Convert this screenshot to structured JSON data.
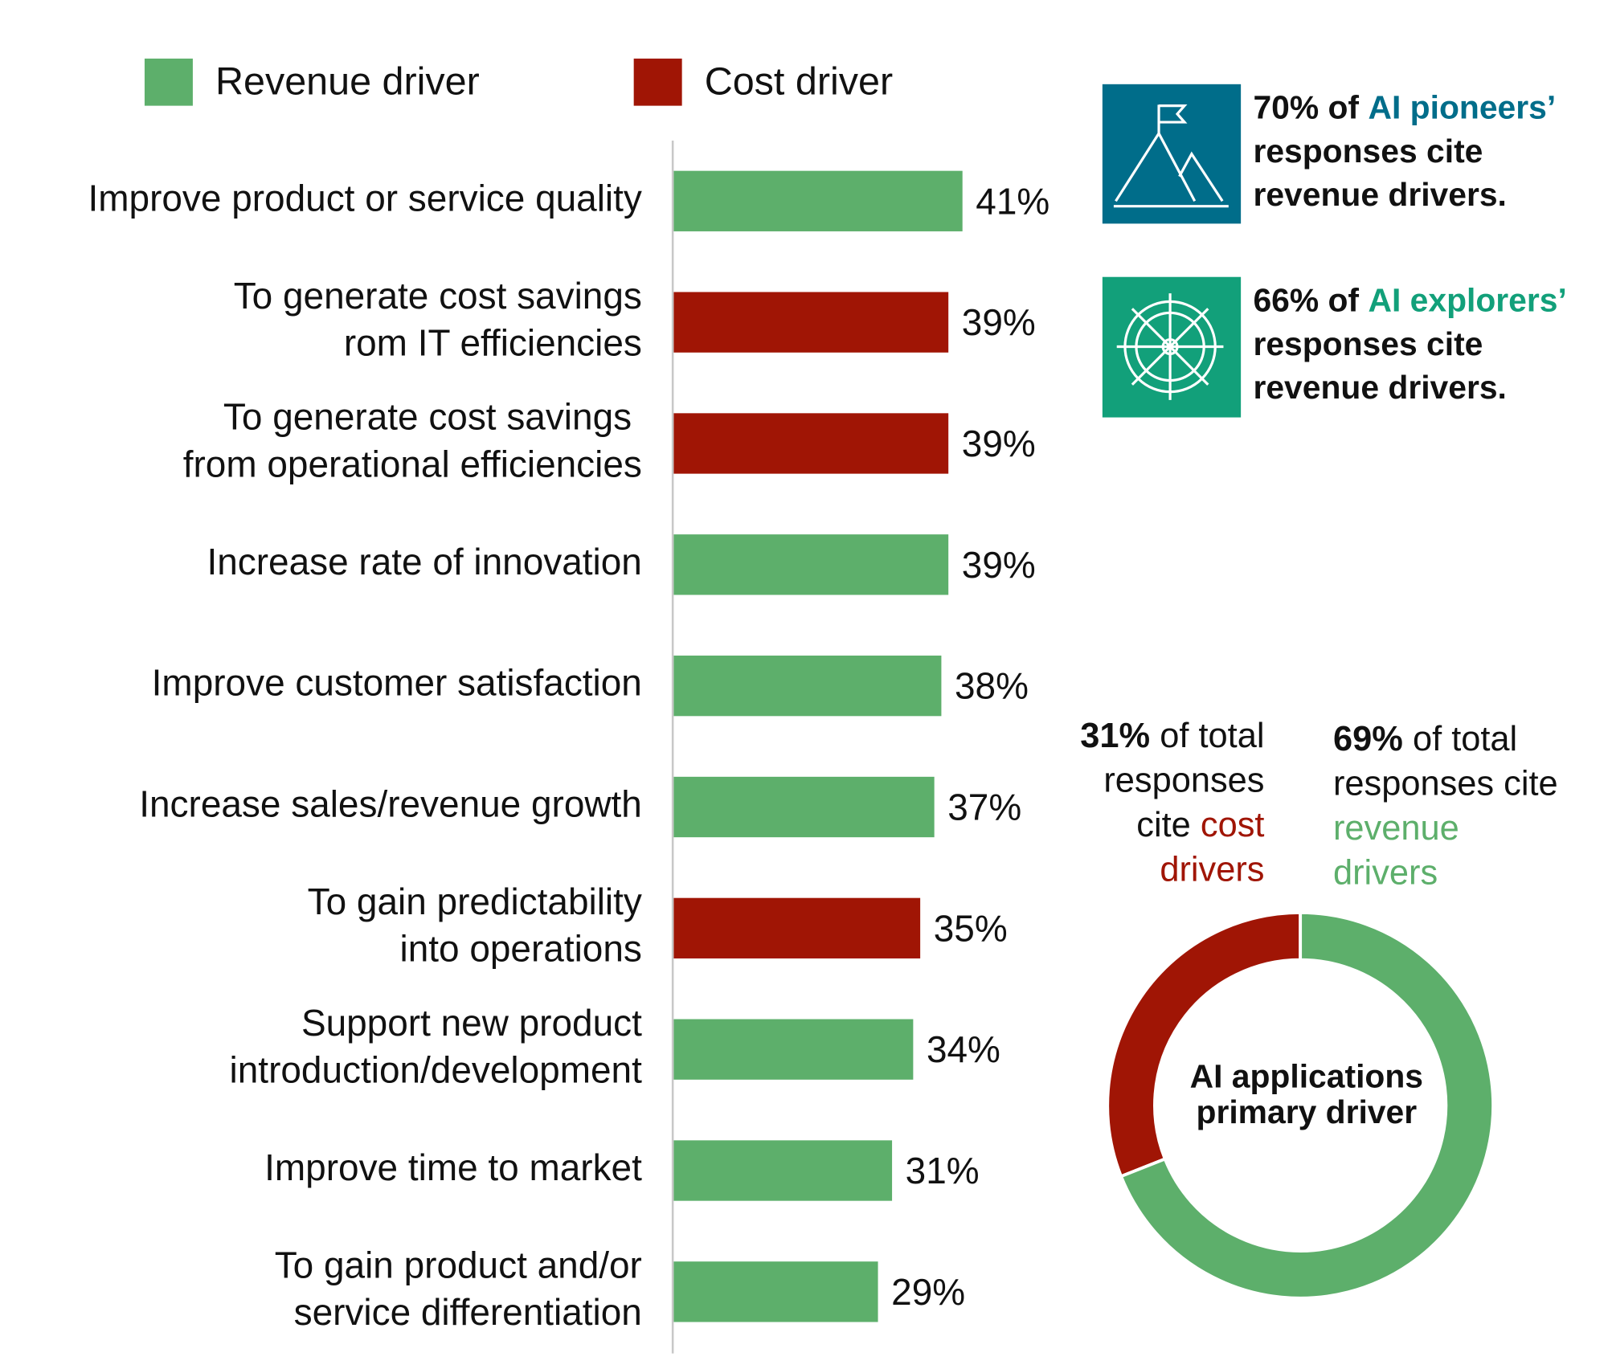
{
  "chart_data": [
    {
      "type": "bar",
      "orientation": "horizontal",
      "legend": [
        {
          "name": "Revenue driver",
          "color": "#5daf6b"
        },
        {
          "name": "Cost driver",
          "color": "#a01505"
        }
      ],
      "categories": [
        "Improve product or service quality",
        "To generate cost savings\nrom IT efficiencies",
        "To generate cost savings \nfrom operational efficiencies",
        "Increase rate of innovation",
        "Improve customer satisfaction",
        "Increase sales/revenue growth",
        "To gain predictability\ninto operations",
        "Support new product\nintroduction/development",
        "Improve time to market",
        "To gain product and/or\nservice differentiation"
      ],
      "values": [
        41,
        39,
        39,
        39,
        38,
        37,
        35,
        34,
        31,
        29
      ],
      "value_labels": [
        "41%",
        "39%",
        "39%",
        "39%",
        "38%",
        "37%",
        "35%",
        "34%",
        "31%",
        "29%"
      ],
      "colors": [
        "#5daf6b",
        "#a01505",
        "#a01505",
        "#5daf6b",
        "#5daf6b",
        "#5daf6b",
        "#a01505",
        "#5daf6b",
        "#5daf6b",
        "#5daf6b"
      ],
      "xlim": [
        0,
        45
      ]
    },
    {
      "type": "pie",
      "donut": true,
      "start": "top",
      "direction": "counterclockwise",
      "values": [
        31,
        69
      ],
      "colors": [
        "#a01505",
        "#5daf6b"
      ],
      "center_text": [
        "AI applications",
        "primary driver"
      ],
      "annotations": [
        {
          "align": "right",
          "lines": [
            [
              {
                "text": "31%",
                "bold": true
              },
              {
                "text": "of total"
              }
            ],
            [
              {
                "text": "responses"
              }
            ],
            [
              {
                "text": "cite"
              },
              {
                "text": "cost",
                "color": "#a01505"
              }
            ],
            [
              {
                "text": "drivers",
                "color": "#a01505"
              }
            ]
          ]
        },
        {
          "align": "left",
          "lines": [
            [
              {
                "text": "69%",
                "bold": true
              },
              {
                "text": "of total"
              }
            ],
            [
              {
                "text": "responses cite"
              }
            ],
            [
              {
                "text": "revenue",
                "color": "#5daf6b"
              }
            ],
            [
              {
                "text": "drivers",
                "color": "#5daf6b"
              }
            ]
          ]
        }
      ]
    }
  ],
  "callouts": [
    {
      "color": "#006d8a",
      "lines": [
        [
          {
            "text": "70% of"
          },
          {
            "text": "AI pioneers’",
            "color": "#006d8a"
          }
        ],
        [
          {
            "text": "responses cite"
          }
        ],
        [
          {
            "text": "revenue drivers."
          }
        ]
      ]
    },
    {
      "color": "#12a07a",
      "lines": [
        [
          {
            "text": "66% of"
          },
          {
            "text": "AI explorers’",
            "color": "#12a07a"
          }
        ],
        [
          {
            "text": "responses cite"
          }
        ],
        [
          {
            "text": "revenue drivers."
          }
        ]
      ]
    }
  ]
}
